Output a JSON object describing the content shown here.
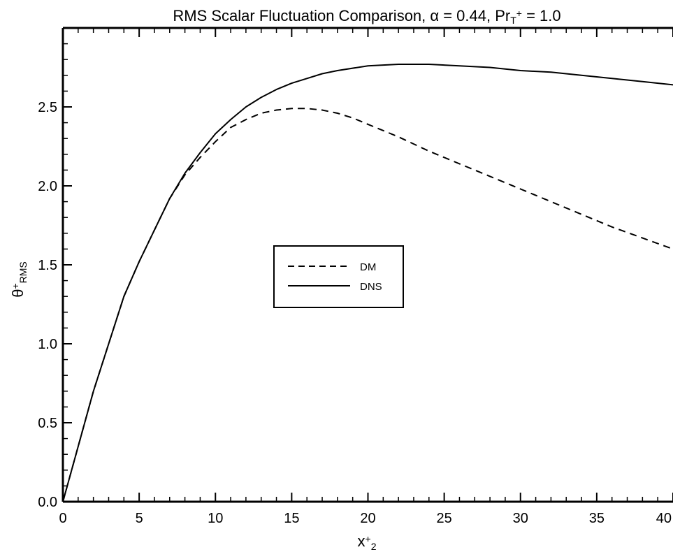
{
  "chart_data": {
    "type": "line",
    "title": {
      "main": "RMS Scalar Fluctuation Comparison, ",
      "alpha_sym": "α",
      "alpha_eq": " = 0.44, Pr",
      "pr_sub": "T",
      "pr_sup": "+",
      "pr_eq": " = 1.0"
    },
    "xlabel": {
      "base": "x",
      "sup": "+",
      "sub": "2"
    },
    "ylabel": {
      "base": "θ",
      "sup": "+",
      "sub": "RMS"
    },
    "xlim": [
      0,
      40
    ],
    "ylim": [
      0,
      3.0
    ],
    "xticks": [
      0,
      5,
      10,
      15,
      20,
      25,
      30,
      35,
      40
    ],
    "xtick_labels": [
      "0",
      "5",
      "10",
      "15",
      "20",
      "25",
      "30",
      "35",
      "40"
    ],
    "yticks": [
      0.0,
      0.5,
      1.0,
      1.5,
      2.0,
      2.5
    ],
    "ytick_labels": [
      "0.0",
      "0.5",
      "1.0",
      "1.5",
      "2.0",
      "2.5"
    ],
    "grid": false,
    "legend_position": "center",
    "series": [
      {
        "name": "DM",
        "style": "dashed",
        "color": "#000000",
        "x": [
          0,
          2,
          4,
          5,
          6,
          7,
          8,
          9,
          10,
          11,
          12,
          13,
          14,
          15,
          16,
          17,
          18,
          19,
          20,
          22,
          24,
          26,
          28,
          30,
          32,
          34,
          36,
          38,
          40
        ],
        "y": [
          0.0,
          0.7,
          1.3,
          1.52,
          1.72,
          1.92,
          2.07,
          2.18,
          2.28,
          2.37,
          2.42,
          2.46,
          2.48,
          2.49,
          2.49,
          2.48,
          2.46,
          2.43,
          2.39,
          2.31,
          2.22,
          2.14,
          2.06,
          1.98,
          1.9,
          1.82,
          1.74,
          1.67,
          1.6
        ]
      },
      {
        "name": "DNS",
        "style": "solid",
        "color": "#000000",
        "x": [
          0,
          2,
          4,
          5,
          6,
          7,
          8,
          9,
          10,
          11,
          12,
          13,
          14,
          15,
          16,
          17,
          18,
          20,
          22,
          24,
          26,
          28,
          30,
          32,
          34,
          36,
          38,
          40
        ],
        "y": [
          0.0,
          0.7,
          1.3,
          1.52,
          1.72,
          1.92,
          2.08,
          2.21,
          2.33,
          2.42,
          2.5,
          2.56,
          2.61,
          2.65,
          2.68,
          2.71,
          2.73,
          2.76,
          2.77,
          2.77,
          2.76,
          2.75,
          2.73,
          2.72,
          2.7,
          2.68,
          2.66,
          2.64
        ]
      }
    ]
  }
}
